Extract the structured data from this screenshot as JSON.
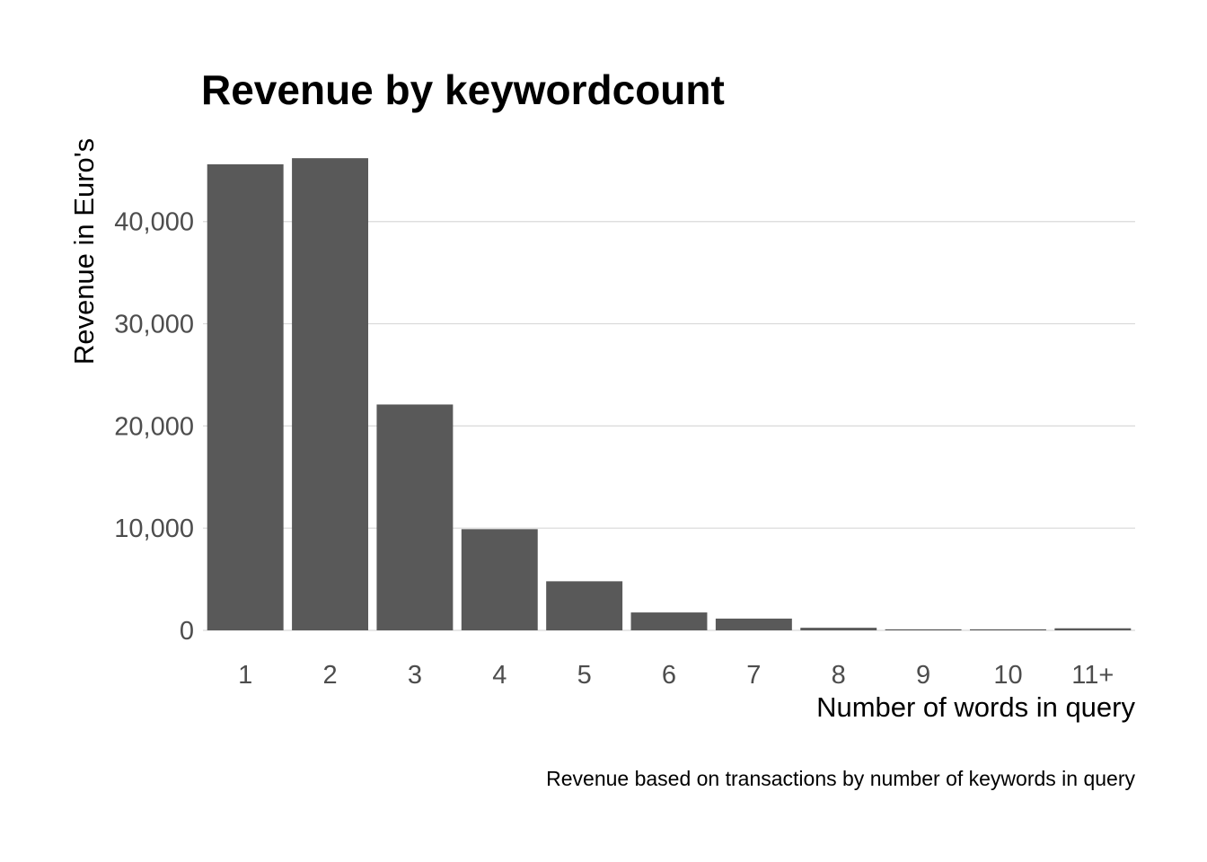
{
  "chart_data": {
    "type": "bar",
    "title": "Revenue by keywordcount",
    "xlabel": "Number of words in query",
    "ylabel": "Revenue in Euro's",
    "caption": "Revenue based on transactions by number of keywords in query",
    "categories": [
      "1",
      "2",
      "3",
      "4",
      "5",
      "6",
      "7",
      "8",
      "9",
      "10",
      "11+"
    ],
    "values": [
      45600,
      46200,
      22100,
      9900,
      4800,
      1750,
      1150,
      250,
      100,
      100,
      200
    ],
    "yticks": [
      0,
      10000,
      20000,
      30000,
      40000
    ],
    "ytick_labels": [
      "0",
      "10,000",
      "20,000",
      "30,000",
      "40,000"
    ],
    "ylim": [
      0,
      48500
    ],
    "grid": "horizontal",
    "legend": "none",
    "colors": {
      "bar": "#595959",
      "grid": "#d9d9d9"
    }
  }
}
